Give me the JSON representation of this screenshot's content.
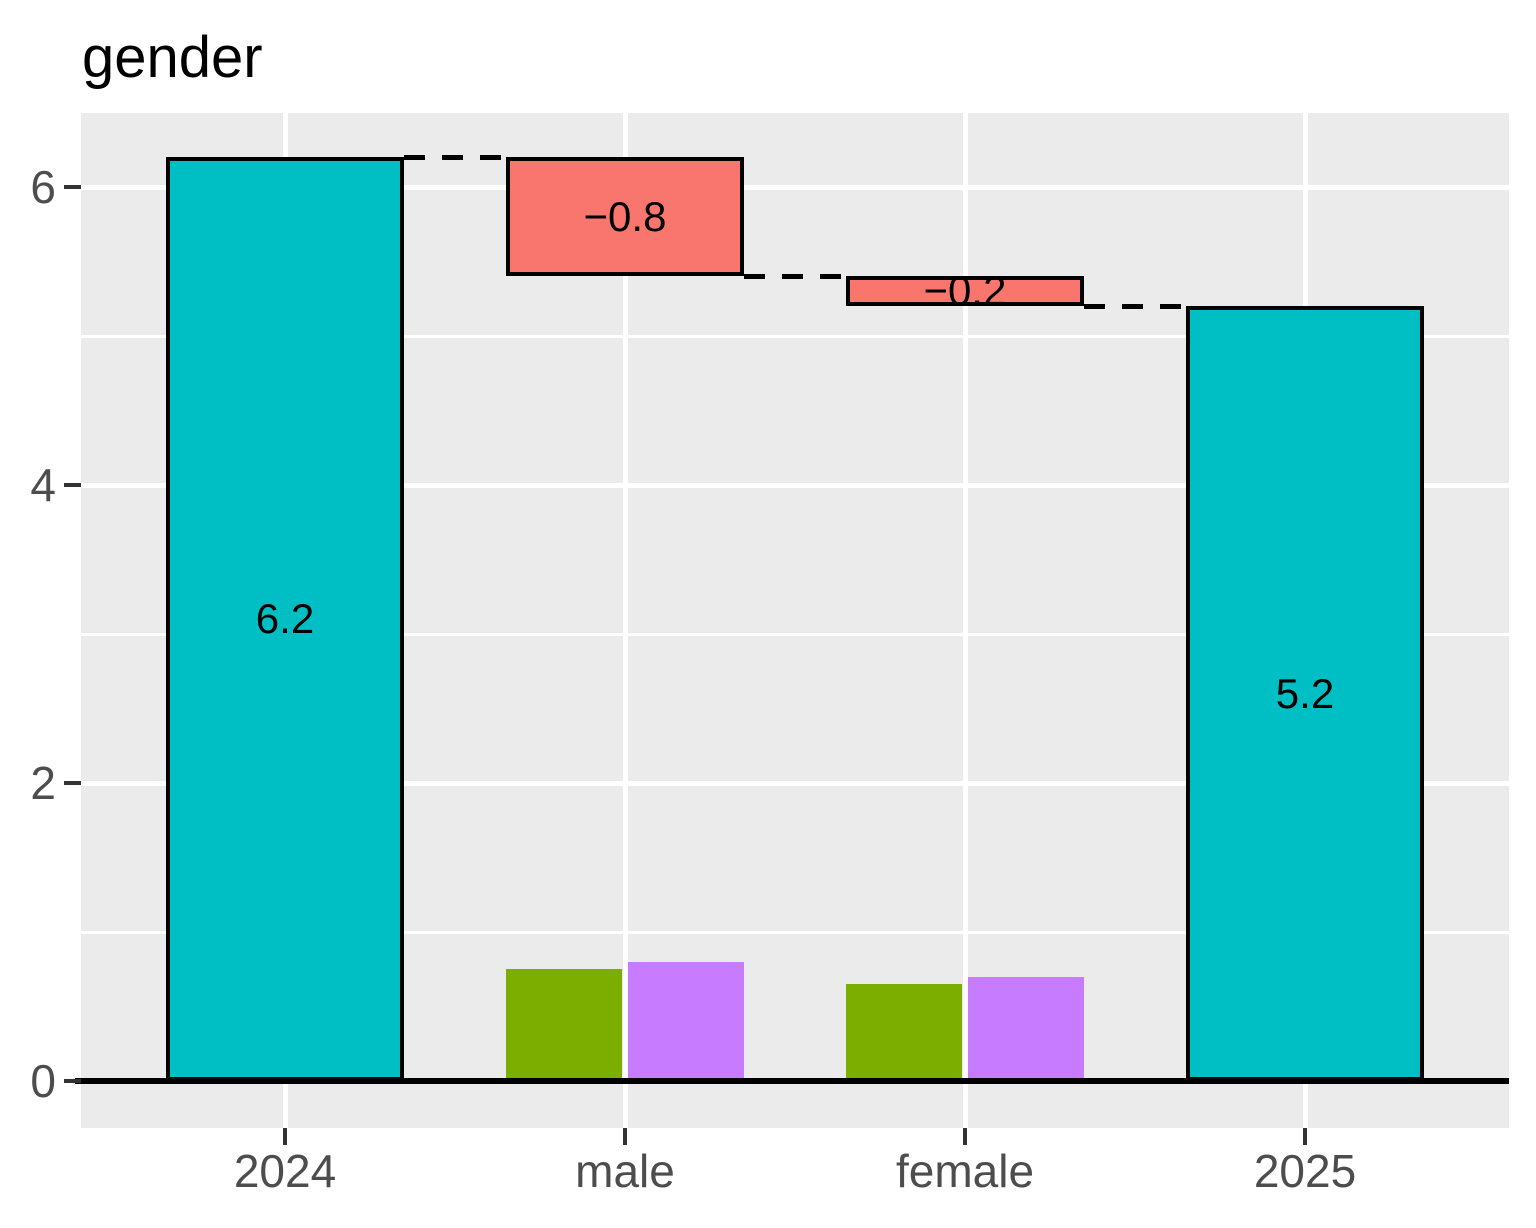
{
  "title": "gender",
  "chart_data": {
    "type": "bar",
    "subtype": "waterfall-decomposition",
    "title": "gender",
    "categories": [
      "2024",
      "male",
      "female",
      "2025"
    ],
    "y_axis": {
      "ticks": [
        0,
        2,
        4,
        6
      ],
      "minor_ticks": [
        1,
        3,
        5
      ],
      "range": [
        -0.32,
        6.5
      ],
      "grid": true
    },
    "waterfall": {
      "bars": [
        {
          "category": "2024",
          "from": 0.0,
          "to": 6.2,
          "label": "6.2",
          "color": "#00BFC4"
        },
        {
          "category": "male",
          "from": 6.2,
          "to": 5.4,
          "label": "−0.8",
          "color": "#F8766D"
        },
        {
          "category": "female",
          "from": 5.4,
          "to": 5.2,
          "label": "−0.2",
          "color": "#F8766D"
        },
        {
          "category": "2025",
          "from": 0.0,
          "to": 5.2,
          "label": "5.2",
          "color": "#00BFC4"
        }
      ],
      "connectors": [
        {
          "level": 6.2,
          "from_cat": 0,
          "to_cat": 1
        },
        {
          "level": 5.4,
          "from_cat": 1,
          "to_cat": 2
        },
        {
          "level": 5.2,
          "from_cat": 2,
          "to_cat": 3
        }
      ]
    },
    "sub_bars": [
      {
        "category_index": 1,
        "category": "male",
        "values": [
          0.75,
          0.8
        ],
        "colors": [
          "#7CAE00",
          "#C77CFF"
        ]
      },
      {
        "category_index": 2,
        "category": "female",
        "values": [
          0.65,
          0.7
        ],
        "colors": [
          "#7CAE00",
          "#C77CFF"
        ]
      }
    ],
    "colors": {
      "total_bar": "#00BFC4",
      "decrease_bar": "#F8766D",
      "sub_bar_green": "#7CAE00",
      "sub_bar_purple": "#C77CFF",
      "panel_background": "#EBEBEB",
      "gridline": "#FFFFFF",
      "axis_text": "#4D4D4D",
      "tick_mark": "#333333",
      "axis_line": "#000000",
      "bar_border": "#000000"
    },
    "legend": "none"
  }
}
